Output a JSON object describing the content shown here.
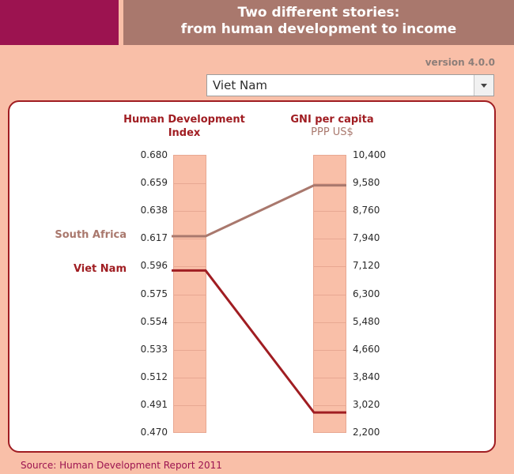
{
  "header": {
    "title_line1": "Two different stories:",
    "title_line2": "from human development to income",
    "version": "version 4.0.0"
  },
  "selector": {
    "selected": "Viet Nam"
  },
  "columns": {
    "hdi_label_line1": "Human Development",
    "hdi_label_line2": "Index",
    "gni_label": "GNI per capita",
    "gni_unit": "PPP US$"
  },
  "hdi_ticks": [
    "0.680",
    "0.659",
    "0.638",
    "0.617",
    "0.596",
    "0.575",
    "0.554",
    "0.533",
    "0.512",
    "0.491",
    "0.470"
  ],
  "gni_ticks": [
    "10,400",
    "9,580",
    "8,760",
    "7,940",
    "7,120",
    "6,300",
    "5,480",
    "4,660",
    "3,840",
    "3,020",
    "2,200"
  ],
  "countries": [
    {
      "name": "South Africa",
      "hdi": 0.619,
      "gni": 9520,
      "color": "#a9786d"
    },
    {
      "name": "Viet Nam",
      "hdi": 0.593,
      "gni": 2805,
      "color": "#a01d22"
    }
  ],
  "footer": {
    "source": "Source: Human Development Report 2011"
  }
}
